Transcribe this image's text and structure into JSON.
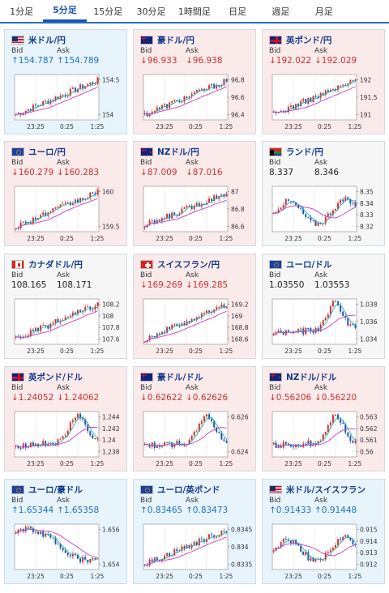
{
  "tabs": [
    {
      "label": "1分足",
      "active": false
    },
    {
      "label": "5分足",
      "active": true
    },
    {
      "label": "15分足",
      "active": false
    },
    {
      "label": "30分足",
      "active": false
    },
    {
      "label": "1時間足",
      "active": false
    },
    {
      "label": "日足",
      "active": false
    },
    {
      "label": "週足",
      "active": false
    },
    {
      "label": "月足",
      "active": false
    }
  ],
  "labels": {
    "bid": "Bid",
    "ask": "Ask"
  },
  "x_ticks": [
    "23:25",
    "0:25",
    "1:25"
  ],
  "colors": {
    "up_candle": "#d0312d",
    "down_candle": "#1a56b0",
    "ma_fast": "#2ab0a8",
    "ma_slow": "#c23bc9",
    "up_arrow": "#1a73c9",
    "down_arrow": "#d0312d"
  },
  "cards": [
    {
      "name": "米ドル/円",
      "flag": "us",
      "trend": "up",
      "bid": "↑154.787",
      "ask": "↑154.789",
      "y_ticks": [
        "154.5",
        "154"
      ],
      "shape": "rise"
    },
    {
      "name": "豪ドル/円",
      "flag": "au",
      "trend": "down",
      "bid": "↓96.933",
      "ask": "↓96.938",
      "y_ticks": [
        "96.8",
        "96.6",
        "96.4"
      ],
      "shape": "rise"
    },
    {
      "name": "英ポンド/円",
      "flag": "gb",
      "trend": "down",
      "bid": "↓192.022",
      "ask": "↓192.029",
      "y_ticks": [
        "192",
        "191.5",
        "191"
      ],
      "shape": "rise"
    },
    {
      "name": "ユーロ/円",
      "flag": "eu",
      "trend": "down",
      "bid": "↓160.279",
      "ask": "↓160.283",
      "y_ticks": [
        "160",
        "159.5"
      ],
      "shape": "rise"
    },
    {
      "name": "NZドル/円",
      "flag": "nz",
      "trend": "down",
      "bid": "↓87.009",
      "ask": "↓87.016",
      "y_ticks": [
        "87",
        "86.8",
        "86.6"
      ],
      "shape": "rise"
    },
    {
      "name": "ランド/円",
      "flag": "za",
      "trend": "neutral",
      "bid": "8.337",
      "ask": "8.346",
      "y_ticks": [
        "8.35",
        "8.34",
        "8.33",
        "8.32"
      ],
      "shape": "flat"
    },
    {
      "name": "カナダドル/円",
      "flag": "ca",
      "trend": "neutral",
      "bid": "108.165",
      "ask": "108.171",
      "y_ticks": [
        "108.2",
        "108",
        "107.8",
        "107.6"
      ],
      "shape": "rise"
    },
    {
      "name": "スイスフラン/円",
      "flag": "ch",
      "trend": "down",
      "bid": "↓169.269",
      "ask": "↓169.285",
      "y_ticks": [
        "169.2",
        "169",
        "168.8",
        "168.6"
      ],
      "shape": "rise"
    },
    {
      "name": "ユーロ/ドル",
      "flag": "eu",
      "trend": "neutral",
      "bid": "1.03550",
      "ask": "1.03553",
      "y_ticks": [
        "1.038",
        "1.036",
        "1.034"
      ],
      "shape": "hump"
    },
    {
      "name": "英ポンド/ドル",
      "flag": "gb",
      "trend": "down",
      "bid": "↓1.24052",
      "ask": "↓1.24062",
      "y_ticks": [
        "1.244",
        "1.242",
        "1.24",
        "1.238"
      ],
      "shape": "hump"
    },
    {
      "name": "豪ドル/ドル",
      "flag": "au",
      "trend": "down",
      "bid": "↓0.62622",
      "ask": "↓0.62626",
      "y_ticks": [
        "0.626",
        "0.624"
      ],
      "shape": "hump"
    },
    {
      "name": "NZドル/ドル",
      "flag": "nz",
      "trend": "down",
      "bid": "↓0.56206",
      "ask": "↓0.56220",
      "y_ticks": [
        "0.563",
        "0.562",
        "0.561",
        "0.56"
      ],
      "shape": "hump"
    },
    {
      "name": "ユーロ/豪ドル",
      "flag": "eu",
      "trend": "up",
      "bid": "↑1.65344",
      "ask": "↑1.65358",
      "y_ticks": [
        "1.656",
        "1.654"
      ],
      "shape": "fall"
    },
    {
      "name": "ユーロ/英ポンド",
      "flag": "eu",
      "trend": "up",
      "bid": "↑0.83465",
      "ask": "↑0.83473",
      "y_ticks": [
        "0.8345",
        "0.834",
        "0.8335"
      ],
      "shape": "rise"
    },
    {
      "name": "米ドル/スイスフラン",
      "flag": "us",
      "trend": "up",
      "bid": "↑0.91433",
      "ask": "↑0.91448",
      "y_ticks": [
        "0.915",
        "0.914",
        "0.913",
        "0.912"
      ],
      "shape": "flat"
    }
  ]
}
